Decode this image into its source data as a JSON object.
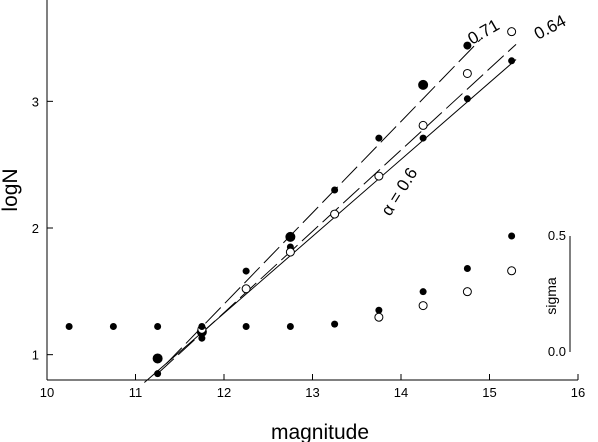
{
  "chart_data": {
    "type": "scatter",
    "xlabel": "magnitude",
    "ylabel": "logN",
    "xlim": [
      10,
      16
    ],
    "ylim": [
      0.8,
      3.8
    ],
    "x_ticks": [
      "10",
      "11",
      "12",
      "13",
      "14",
      "15",
      "16"
    ],
    "y_ticks": [
      "1",
      "2",
      "3"
    ],
    "grid": false,
    "series": [
      {
        "marker": "filled-large",
        "x": [
          11.25,
          11.75,
          12.75,
          14.25
        ],
        "y": [
          0.97,
          1.18,
          1.93,
          3.13
        ]
      },
      {
        "marker": "filled-small",
        "x": [
          11.25,
          11.75,
          12.25,
          12.75,
          13.25,
          13.75,
          14.25,
          14.75,
          15.25
        ],
        "y": [
          0.85,
          1.13,
          1.66,
          1.85,
          2.3,
          2.71,
          2.71,
          3.02,
          3.32
        ]
      },
      {
        "marker": "open",
        "x": [
          11.75,
          12.25,
          12.75,
          13.25,
          13.75,
          14.25,
          14.75,
          15.25
        ],
        "y": [
          1.2,
          1.52,
          1.81,
          2.11,
          2.41,
          2.81,
          3.22,
          3.55
        ]
      },
      {
        "marker": "filled-star",
        "x": [
          14.75
        ],
        "y": [
          3.44
        ]
      }
    ],
    "fit_lines": [
      {
        "label": "α = 0.6",
        "style": "solid",
        "x": [
          11.1,
          15.3
        ],
        "y": [
          0.78,
          3.33
        ]
      },
      {
        "label": "0.64",
        "style": "dashed",
        "x": [
          11.25,
          15.3
        ],
        "y": [
          0.85,
          3.45
        ]
      },
      {
        "label": "0.71",
        "style": "dashed",
        "x": [
          11.35,
          14.9
        ],
        "y": [
          0.93,
          3.49
        ]
      }
    ],
    "inset": {
      "axis_label": "sigma",
      "ylim": [
        0.0,
        0.5
      ],
      "y_ticks": [
        "0.0",
        "0.5"
      ],
      "series": [
        {
          "marker": "filled-small",
          "x": [
            10.25,
            10.75,
            11.25,
            11.75,
            12.25,
            12.75,
            13.25,
            13.75,
            14.25,
            14.75,
            15.25
          ],
          "y": [
            0.11,
            0.11,
            0.11,
            0.11,
            0.11,
            0.11,
            0.12,
            0.18,
            0.26,
            0.36,
            0.5
          ]
        },
        {
          "marker": "open",
          "x": [
            13.75,
            14.25,
            14.75,
            15.25
          ],
          "y": [
            0.15,
            0.2,
            0.26,
            0.35
          ]
        }
      ]
    }
  }
}
